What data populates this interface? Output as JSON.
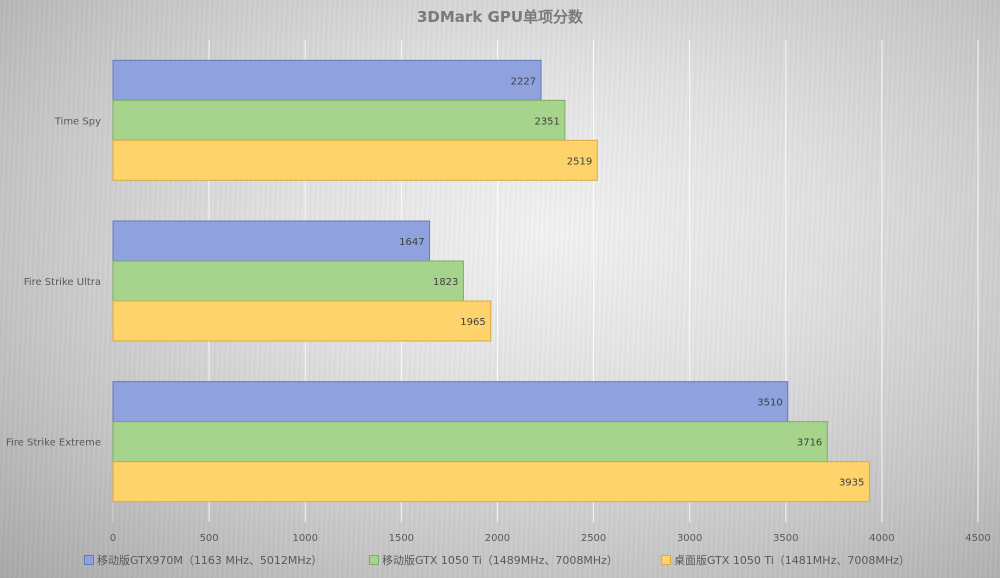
{
  "chart_data": {
    "type": "bar",
    "orientation": "horizontal",
    "title": "3DMark GPU单项分数",
    "categories": [
      "Time Spy",
      "Fire Strike Ultra",
      "Fire Strike Extreme"
    ],
    "series": [
      {
        "name": "移动版GTX970M（1163 MHz、5012MHz）",
        "values": [
          2227,
          1647,
          3510
        ],
        "color": "#8fa2de"
      },
      {
        "name": "移动版GTX 1050 Ti（1489MHz、7008MHz）",
        "values": [
          2351,
          1823,
          3716
        ],
        "color": "#a6d48c"
      },
      {
        "name": "桌面版GTX 1050 Ti（1481MHz、7008MHz）",
        "values": [
          2519,
          1965,
          3935
        ],
        "color": "#ffd36b"
      }
    ],
    "xlim": [
      0,
      4500
    ],
    "xticks": [
      0,
      500,
      1000,
      1500,
      2000,
      2500,
      3000,
      3500,
      4000,
      4500
    ],
    "grid": true,
    "legend_position": "bottom",
    "data_labels": true
  }
}
